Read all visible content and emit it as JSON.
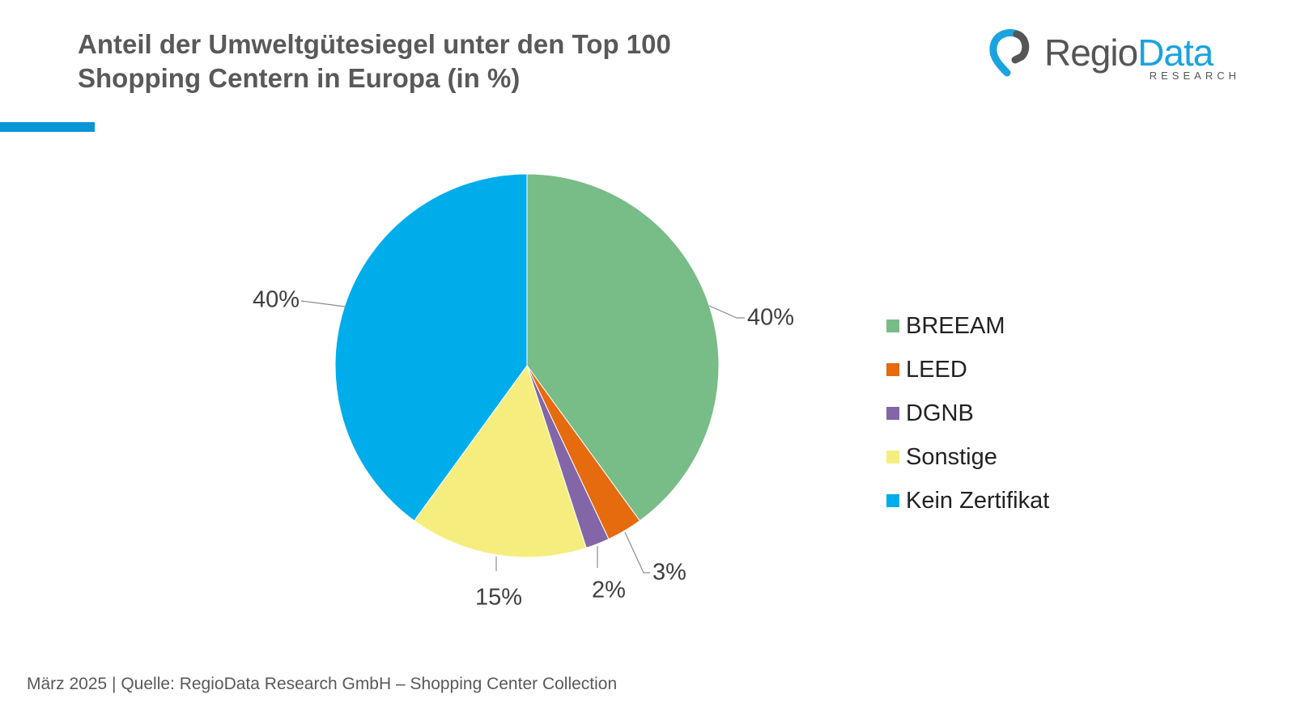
{
  "title_lines": [
    "Anteil der Umweltgütesiegel unter den Top 100",
    "Shopping Centern in Europa (in %)"
  ],
  "logo": {
    "text_dark": "Regio",
    "text_blue": "Data",
    "sub": "RESEARCH"
  },
  "footer": "März 2025 | Quelle: RegioData Research GmbH – Shopping Center Collection",
  "colors": {
    "accent": "#0a96d6",
    "title": "#595959"
  },
  "chart_data": {
    "type": "pie",
    "title": "Anteil der Umweltgütesiegel unter den Top 100 Shopping Centern in Europa (in %)",
    "legend_position": "right",
    "categories": [
      "BREEAM",
      "LEED",
      "DGNB",
      "Sonstige",
      "Kein Zertifikat"
    ],
    "values": [
      40,
      3,
      2,
      15,
      40
    ],
    "labels": [
      "40%",
      "3%",
      "2%",
      "15%",
      "40%"
    ],
    "colors": [
      "#78bc87",
      "#e56b0e",
      "#8266a8",
      "#f5ee7e",
      "#00adeb"
    ]
  }
}
